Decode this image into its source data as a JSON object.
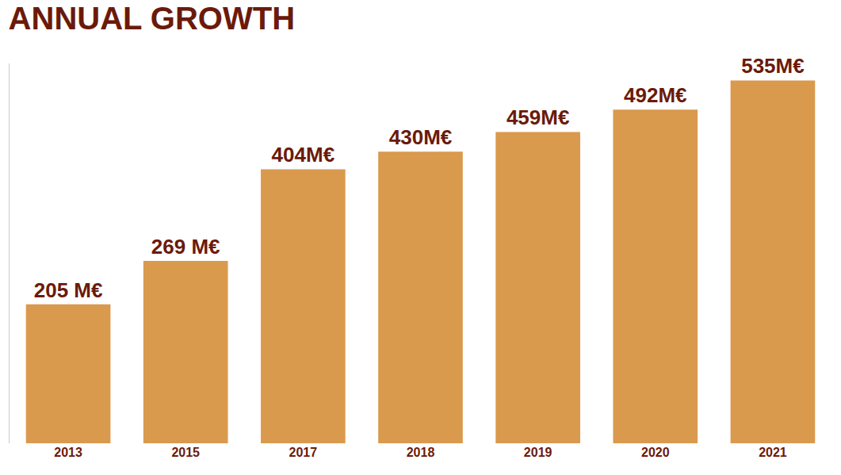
{
  "chart_data": {
    "type": "bar",
    "title": "ANNUAL GROWTH",
    "categories": [
      "2013",
      "2015",
      "2017",
      "2018",
      "2019",
      "2020",
      "2021"
    ],
    "values": [
      205,
      269,
      404,
      430,
      459,
      492,
      535
    ],
    "value_labels": [
      "205 M€",
      "269 M€",
      "404M€",
      "430M€",
      "459M€",
      "492M€",
      "535M€"
    ],
    "color": "#d99a4e",
    "data_labels": true,
    "tick_labels": "x",
    "grid": false,
    "ylim": [
      0,
      560
    ],
    "yticks": []
  }
}
